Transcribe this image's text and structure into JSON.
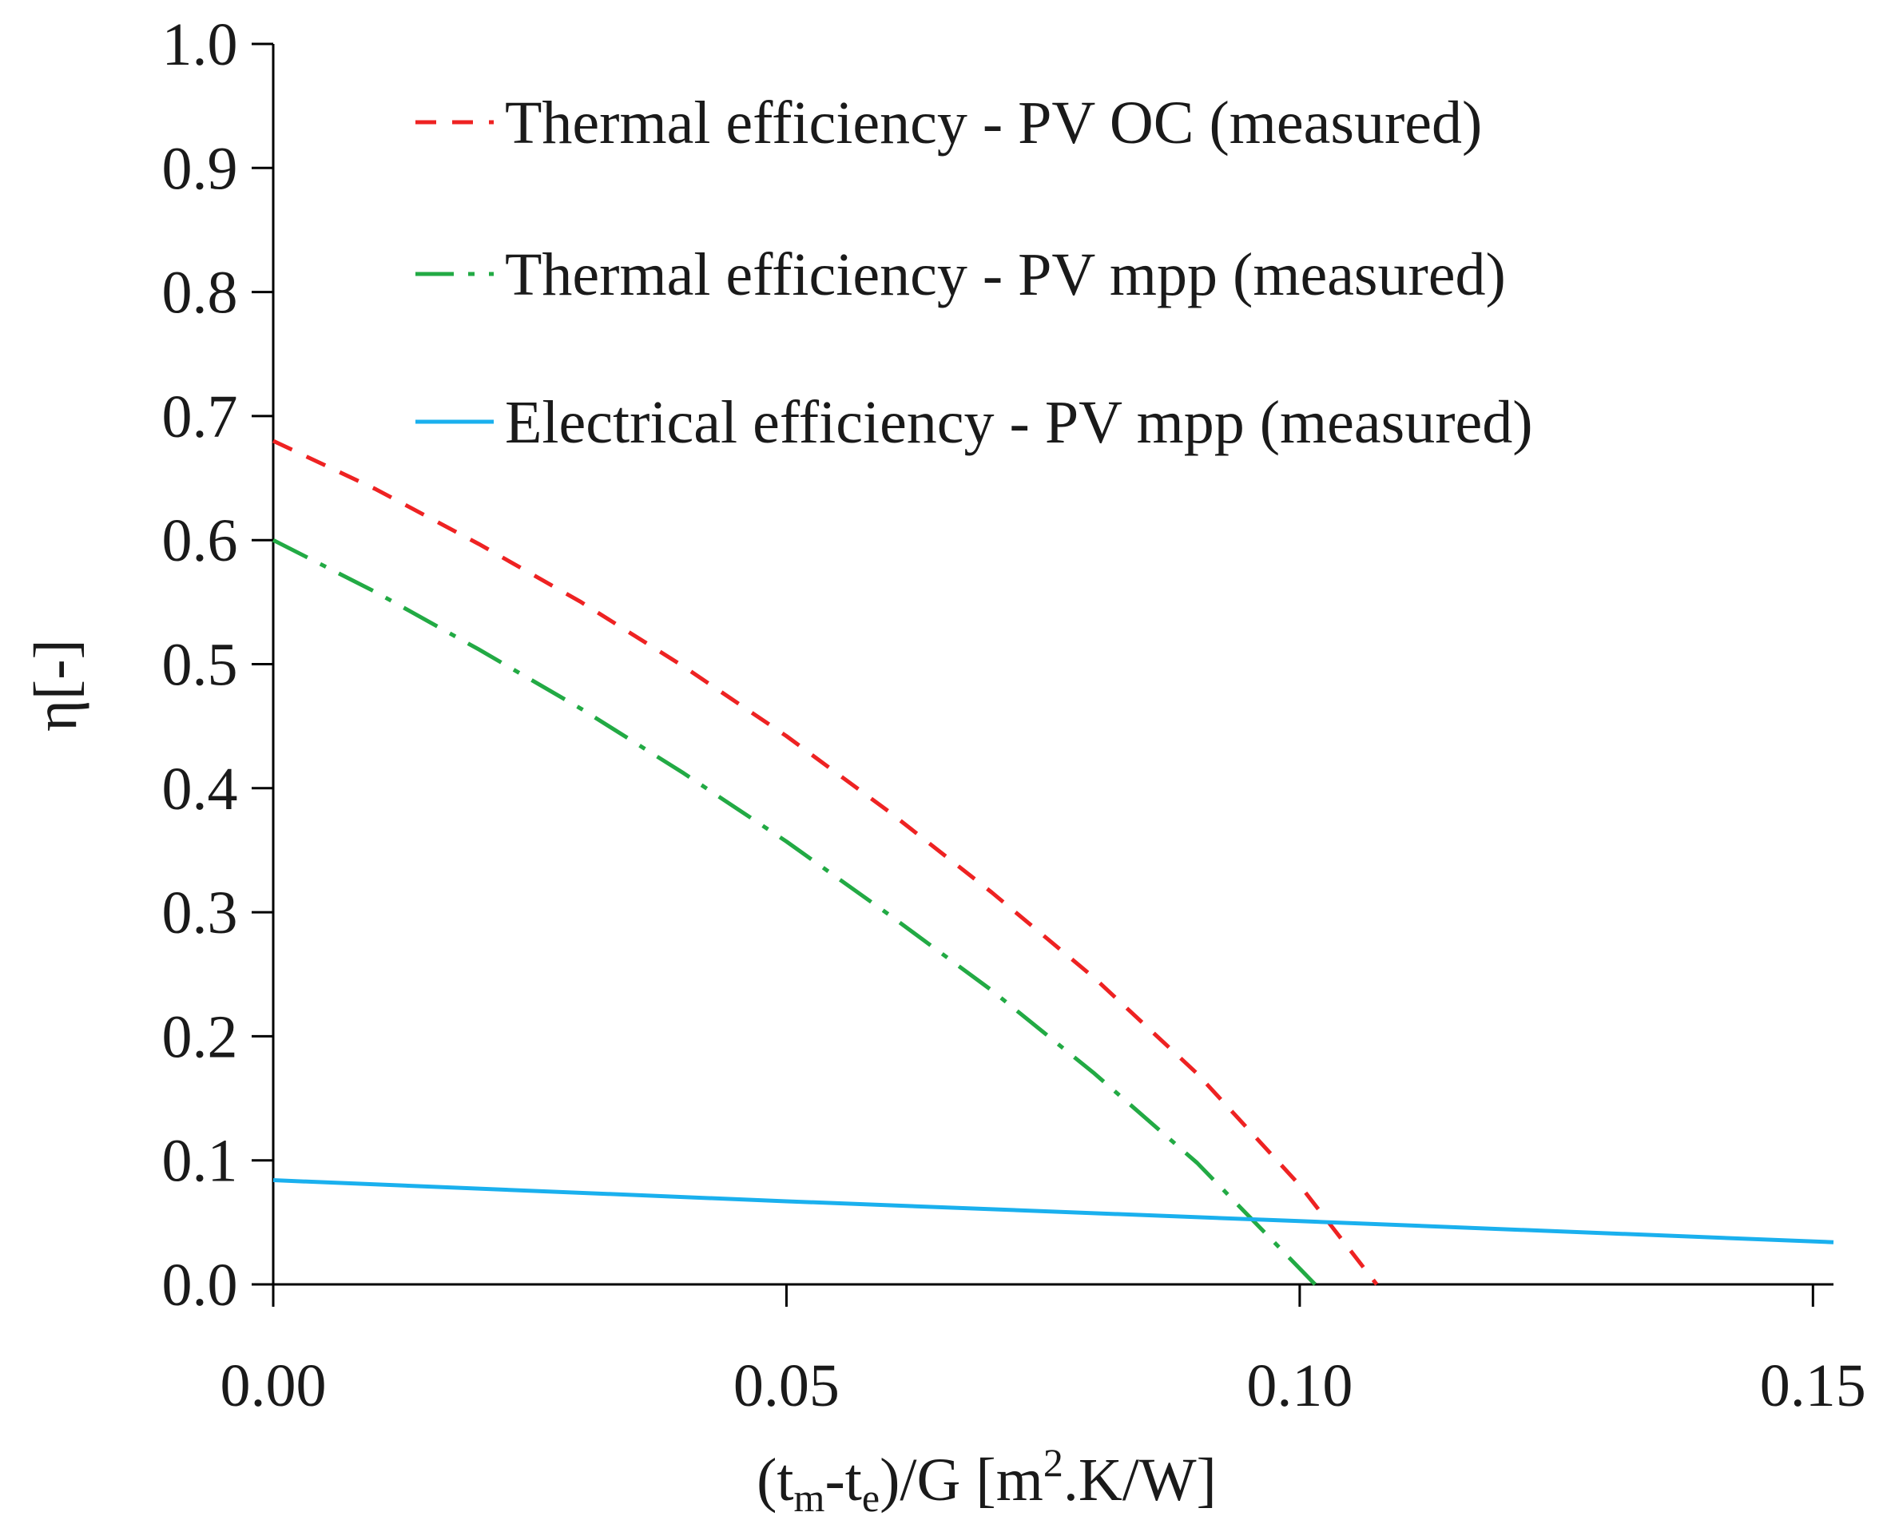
{
  "chart_data": {
    "type": "line",
    "title": "",
    "xlabel": {
      "prefix": "(t",
      "sub1": "m",
      "mid": "-t",
      "sub2": "e",
      "after": ")/G [m",
      "sup": "2",
      "suffix": ".K/W]"
    },
    "ylabel": "η[-]",
    "xlim": [
      0,
      0.152
    ],
    "ylim": [
      0,
      1.0
    ],
    "x_ticks": [
      "0.00",
      "0.05",
      "0.10",
      "0.15"
    ],
    "x_tick_values": [
      0,
      0.05,
      0.1,
      0.15
    ],
    "y_ticks": [
      "0.0",
      "0.1",
      "0.2",
      "0.3",
      "0.4",
      "0.5",
      "0.6",
      "0.7",
      "0.8",
      "0.9",
      "1.0"
    ],
    "y_tick_values": [
      0,
      0.1,
      0.2,
      0.3,
      0.4,
      0.5,
      0.6,
      0.7,
      0.8,
      0.9,
      1.0
    ],
    "grid": false,
    "legend_position": "top-right",
    "series": [
      {
        "name": "Thermal efficiency - PV OC (measured)",
        "color": "#ee2222",
        "style": "dashed",
        "x": [
          0,
          0.01,
          0.02,
          0.03,
          0.04,
          0.05,
          0.06,
          0.07,
          0.08,
          0.09,
          0.1,
          0.1075
        ],
        "y": [
          0.68,
          0.641,
          0.597,
          0.55,
          0.498,
          0.442,
          0.381,
          0.316,
          0.247,
          0.17,
          0.08,
          0.0
        ]
      },
      {
        "name": "Thermal efficiency - PV mpp (measured)",
        "color": "#22aa44",
        "style": "dashdot",
        "x": [
          0,
          0.01,
          0.02,
          0.03,
          0.04,
          0.05,
          0.06,
          0.07,
          0.08,
          0.09,
          0.1015
        ],
        "y": [
          0.6,
          0.558,
          0.512,
          0.464,
          0.412,
          0.357,
          0.298,
          0.237,
          0.17,
          0.098,
          0.0
        ]
      },
      {
        "name": "Electrical efficiency - PV mpp (measured)",
        "color": "#1ab0ee",
        "style": "solid",
        "x": [
          0,
          0.05,
          0.1,
          0.152
        ],
        "y": [
          0.084,
          0.067,
          0.051,
          0.034
        ]
      }
    ]
  }
}
